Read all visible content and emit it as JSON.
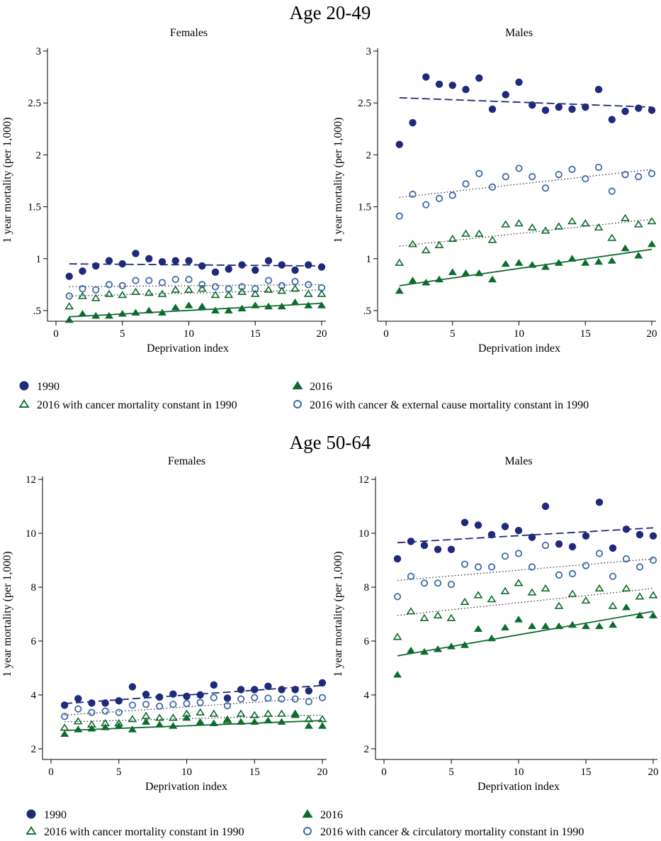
{
  "sections": [
    {
      "title": "Age 20-49",
      "legend": [
        {
          "marker": "filled-circle",
          "label": "1990"
        },
        {
          "marker": "filled-triangle",
          "label": "2016"
        },
        {
          "marker": "hollow-triangle",
          "label": "2016 with cancer mortality constant in 1990"
        },
        {
          "marker": "hollow-circle",
          "label": "2016 with cancer & external cause mortality constant in 1990"
        }
      ]
    },
    {
      "title": "Age 50-64",
      "legend": [
        {
          "marker": "filled-circle",
          "label": "1990"
        },
        {
          "marker": "filled-triangle",
          "label": "2016"
        },
        {
          "marker": "hollow-triangle",
          "label": "2016 with cancer mortality constant in 1990"
        },
        {
          "marker": "hollow-circle",
          "label": "2016 with cancer & circulatory mortality constant in 1990"
        }
      ]
    }
  ],
  "colors": {
    "navy": "#1F2A7A",
    "steel_blue": "#3D6AA8",
    "green": "#0E6B2E",
    "axis": "#000000"
  },
  "chart_data": [
    {
      "type": "scatter",
      "section": "Age 20-49",
      "title": "Females",
      "xlabel": "Deprivation index",
      "ylabel": "1 year mortality (per 1,000)",
      "xlim": [
        0,
        20
      ],
      "ylim": [
        0.5,
        3
      ],
      "xticks": [
        0,
        5,
        10,
        15,
        20
      ],
      "xtick_labels": [
        "0",
        "5",
        "10",
        "15",
        "20"
      ],
      "yticks": [
        0.5,
        1,
        1.5,
        2,
        2.5,
        3
      ],
      "ytick_labels": [
        ".5",
        "1",
        "1.5",
        "2",
        "2.5",
        "3"
      ],
      "x": [
        1,
        2,
        3,
        4,
        5,
        6,
        7,
        8,
        9,
        10,
        11,
        12,
        13,
        14,
        15,
        16,
        17,
        18,
        19,
        20
      ],
      "series": [
        {
          "legend_index": 0,
          "marker": "filled-circle",
          "line": "dashed",
          "color": "#1F2A7A",
          "values": [
            0.83,
            0.88,
            0.93,
            0.98,
            0.95,
            1.05,
            1.0,
            0.97,
            0.98,
            0.98,
            0.93,
            0.87,
            0.9,
            0.94,
            0.89,
            0.98,
            0.94,
            0.89,
            0.94,
            0.92
          ],
          "fit": [
            0.95,
            0.93
          ]
        },
        {
          "legend_index": 3,
          "marker": "hollow-circle",
          "line": "dotted",
          "color": "#3D6AA8",
          "values": [
            0.64,
            0.71,
            0.7,
            0.75,
            0.74,
            0.79,
            0.79,
            0.77,
            0.8,
            0.8,
            0.75,
            0.73,
            0.71,
            0.73,
            0.71,
            0.79,
            0.74,
            0.78,
            0.75,
            0.72
          ],
          "fit": [
            0.73,
            0.75
          ]
        },
        {
          "legend_index": 2,
          "marker": "hollow-triangle",
          "line": "dotted",
          "color": "#0E6B2E",
          "values": [
            0.54,
            0.64,
            0.62,
            0.66,
            0.65,
            0.68,
            0.67,
            0.66,
            0.7,
            0.7,
            0.71,
            0.65,
            0.65,
            0.68,
            0.66,
            0.7,
            0.69,
            0.71,
            0.66,
            0.66
          ],
          "fit": [
            0.64,
            0.7
          ]
        },
        {
          "legend_index": 1,
          "marker": "filled-triangle",
          "line": "solid",
          "color": "#0E6B2E",
          "values": [
            0.41,
            0.47,
            0.45,
            0.45,
            0.47,
            0.48,
            0.5,
            0.48,
            0.53,
            0.55,
            0.54,
            0.5,
            0.5,
            0.52,
            0.55,
            0.54,
            0.54,
            0.58,
            0.55,
            0.55
          ],
          "fit": [
            0.44,
            0.57
          ]
        }
      ]
    },
    {
      "type": "scatter",
      "section": "Age 20-49",
      "title": "Males",
      "xlabel": "Deprivation index",
      "ylabel": "1 year mortality (per 1,000)",
      "xlim": [
        0,
        20
      ],
      "ylim": [
        0.5,
        3
      ],
      "xticks": [
        0,
        5,
        10,
        15,
        20
      ],
      "xtick_labels": [
        "0",
        "5",
        "10",
        "15",
        "20"
      ],
      "yticks": [
        0.5,
        1,
        1.5,
        2,
        2.5,
        3
      ],
      "ytick_labels": [
        ".5",
        "1",
        "1.5",
        "2",
        "2.5",
        "3"
      ],
      "x": [
        1,
        2,
        3,
        4,
        5,
        6,
        7,
        8,
        9,
        10,
        11,
        12,
        13,
        14,
        15,
        16,
        17,
        18,
        19,
        20
      ],
      "series": [
        {
          "legend_index": 0,
          "marker": "filled-circle",
          "line": "dashed",
          "color": "#1F2A7A",
          "values": [
            2.1,
            2.31,
            2.75,
            2.68,
            2.67,
            2.63,
            2.74,
            2.44,
            2.58,
            2.7,
            2.48,
            2.43,
            2.46,
            2.44,
            2.46,
            2.63,
            2.34,
            2.42,
            2.45,
            2.43
          ],
          "fit": [
            2.55,
            2.46
          ]
        },
        {
          "legend_index": 3,
          "marker": "hollow-circle",
          "line": "dotted",
          "color": "#3D6AA8",
          "values": [
            1.41,
            1.62,
            1.52,
            1.58,
            1.61,
            1.72,
            1.82,
            1.69,
            1.79,
            1.87,
            1.79,
            1.68,
            1.81,
            1.86,
            1.77,
            1.88,
            1.65,
            1.81,
            1.79,
            1.82
          ],
          "fit": [
            1.59,
            1.86
          ]
        },
        {
          "legend_index": 2,
          "marker": "hollow-triangle",
          "line": "dotted",
          "color": "#0E6B2E",
          "values": [
            0.96,
            1.14,
            1.08,
            1.13,
            1.19,
            1.24,
            1.24,
            1.18,
            1.33,
            1.34,
            1.3,
            1.27,
            1.31,
            1.36,
            1.34,
            1.3,
            1.2,
            1.39,
            1.33,
            1.36
          ],
          "fit": [
            1.12,
            1.38
          ]
        },
        {
          "legend_index": 1,
          "marker": "filled-triangle",
          "line": "solid",
          "color": "#0E6B2E",
          "values": [
            0.69,
            0.79,
            0.77,
            0.8,
            0.87,
            0.86,
            0.86,
            0.8,
            0.95,
            0.96,
            0.94,
            0.92,
            0.96,
            1.0,
            0.96,
            0.97,
            0.98,
            1.1,
            1.03,
            1.14
          ],
          "fit": [
            0.74,
            1.09
          ]
        }
      ]
    },
    {
      "type": "scatter",
      "section": "Age 50-64",
      "title": "Females",
      "xlabel": "Deprivation index",
      "ylabel": "1 year mortality (per 1,000)",
      "xlim": [
        0,
        20
      ],
      "ylim": [
        2,
        12
      ],
      "xticks": [
        0,
        5,
        10,
        15,
        20
      ],
      "xtick_labels": [
        "0",
        "5",
        "10",
        "15",
        "20"
      ],
      "yticks": [
        2,
        4,
        6,
        8,
        10,
        12
      ],
      "ytick_labels": [
        "2",
        "4",
        "6",
        "8",
        "10",
        "12"
      ],
      "x": [
        1,
        2,
        3,
        4,
        5,
        6,
        7,
        8,
        9,
        10,
        11,
        12,
        13,
        14,
        15,
        16,
        17,
        18,
        19,
        20
      ],
      "series": [
        {
          "legend_index": 0,
          "marker": "filled-circle",
          "line": "dashed",
          "color": "#1F2A7A",
          "values": [
            3.62,
            3.86,
            3.7,
            3.7,
            3.78,
            4.3,
            4.02,
            3.92,
            4.03,
            3.95,
            4.0,
            4.37,
            3.88,
            4.2,
            4.2,
            4.32,
            4.2,
            4.2,
            4.15,
            4.45
          ],
          "fit": [
            3.68,
            4.35
          ]
        },
        {
          "legend_index": 3,
          "marker": "hollow-circle",
          "line": "dotted",
          "color": "#3D6AA8",
          "values": [
            3.2,
            3.48,
            3.35,
            3.4,
            3.35,
            3.62,
            3.65,
            3.58,
            3.65,
            3.68,
            3.72,
            3.9,
            3.6,
            3.85,
            3.9,
            3.88,
            3.85,
            3.85,
            3.75,
            3.9
          ],
          "fit": [
            3.25,
            3.9
          ]
        },
        {
          "legend_index": 2,
          "marker": "hollow-triangle",
          "line": "dotted",
          "color": "#0E6B2E",
          "values": [
            2.78,
            3.02,
            2.9,
            2.95,
            2.95,
            3.1,
            3.22,
            3.15,
            3.15,
            3.3,
            3.35,
            3.3,
            3.05,
            3.3,
            3.25,
            3.3,
            3.3,
            3.3,
            3.1,
            3.1
          ],
          "fit": [
            3.0,
            3.25
          ]
        },
        {
          "legend_index": 1,
          "marker": "filled-triangle",
          "line": "solid",
          "color": "#0E6B2E",
          "values": [
            2.55,
            2.72,
            2.75,
            2.8,
            2.85,
            2.72,
            3.0,
            2.9,
            2.85,
            3.15,
            3.0,
            2.95,
            3.1,
            3.0,
            3.0,
            3.05,
            3.0,
            3.25,
            2.85,
            2.85
          ],
          "fit": [
            2.68,
            3.05
          ]
        }
      ]
    },
    {
      "type": "scatter",
      "section": "Age 50-64",
      "title": "Males",
      "xlabel": "Deprivation index",
      "ylabel": "1 year mortality (per 1,000)",
      "xlim": [
        0,
        20
      ],
      "ylim": [
        2,
        12
      ],
      "xticks": [
        0,
        5,
        10,
        15,
        20
      ],
      "xtick_labels": [
        "0",
        "5",
        "10",
        "15",
        "20"
      ],
      "yticks": [
        2,
        4,
        6,
        8,
        10,
        12
      ],
      "ytick_labels": [
        "2",
        "4",
        "6",
        "8",
        "10",
        "12"
      ],
      "x": [
        1,
        2,
        3,
        4,
        5,
        6,
        7,
        8,
        9,
        10,
        11,
        12,
        13,
        14,
        15,
        16,
        17,
        18,
        19,
        20
      ],
      "series": [
        {
          "legend_index": 0,
          "marker": "filled-circle",
          "line": "dashed",
          "color": "#1F2A7A",
          "values": [
            9.05,
            9.7,
            9.55,
            9.4,
            9.4,
            10.4,
            10.3,
            9.95,
            10.25,
            10.1,
            9.85,
            11.0,
            9.6,
            9.5,
            9.9,
            11.15,
            9.45,
            10.15,
            9.95,
            9.9
          ],
          "fit": [
            9.65,
            10.2
          ]
        },
        {
          "legend_index": 3,
          "marker": "hollow-circle",
          "line": "dotted",
          "color": "#3D6AA8",
          "values": [
            7.65,
            8.4,
            8.15,
            8.15,
            8.1,
            8.85,
            8.75,
            8.75,
            9.15,
            9.25,
            8.75,
            9.55,
            8.45,
            8.5,
            8.8,
            9.25,
            8.4,
            9.05,
            8.75,
            9.0
          ],
          "fit": [
            8.25,
            9.05
          ]
        },
        {
          "legend_index": 2,
          "marker": "hollow-triangle",
          "line": "dotted",
          "color": "#0E6B2E",
          "values": [
            6.15,
            7.1,
            6.85,
            6.95,
            6.85,
            7.45,
            7.7,
            7.55,
            7.85,
            8.15,
            7.8,
            7.95,
            7.3,
            7.75,
            7.5,
            7.95,
            7.3,
            7.95,
            7.65,
            7.7
          ],
          "fit": [
            6.95,
            7.95
          ]
        },
        {
          "legend_index": 1,
          "marker": "filled-triangle",
          "line": "solid",
          "color": "#0E6B2E",
          "values": [
            4.75,
            5.65,
            5.6,
            5.7,
            5.8,
            5.85,
            6.45,
            6.1,
            6.5,
            6.8,
            6.55,
            6.55,
            6.55,
            6.6,
            6.55,
            6.55,
            6.6,
            7.25,
            6.95,
            6.95
          ],
          "fit": [
            5.45,
            7.1
          ]
        }
      ]
    }
  ]
}
